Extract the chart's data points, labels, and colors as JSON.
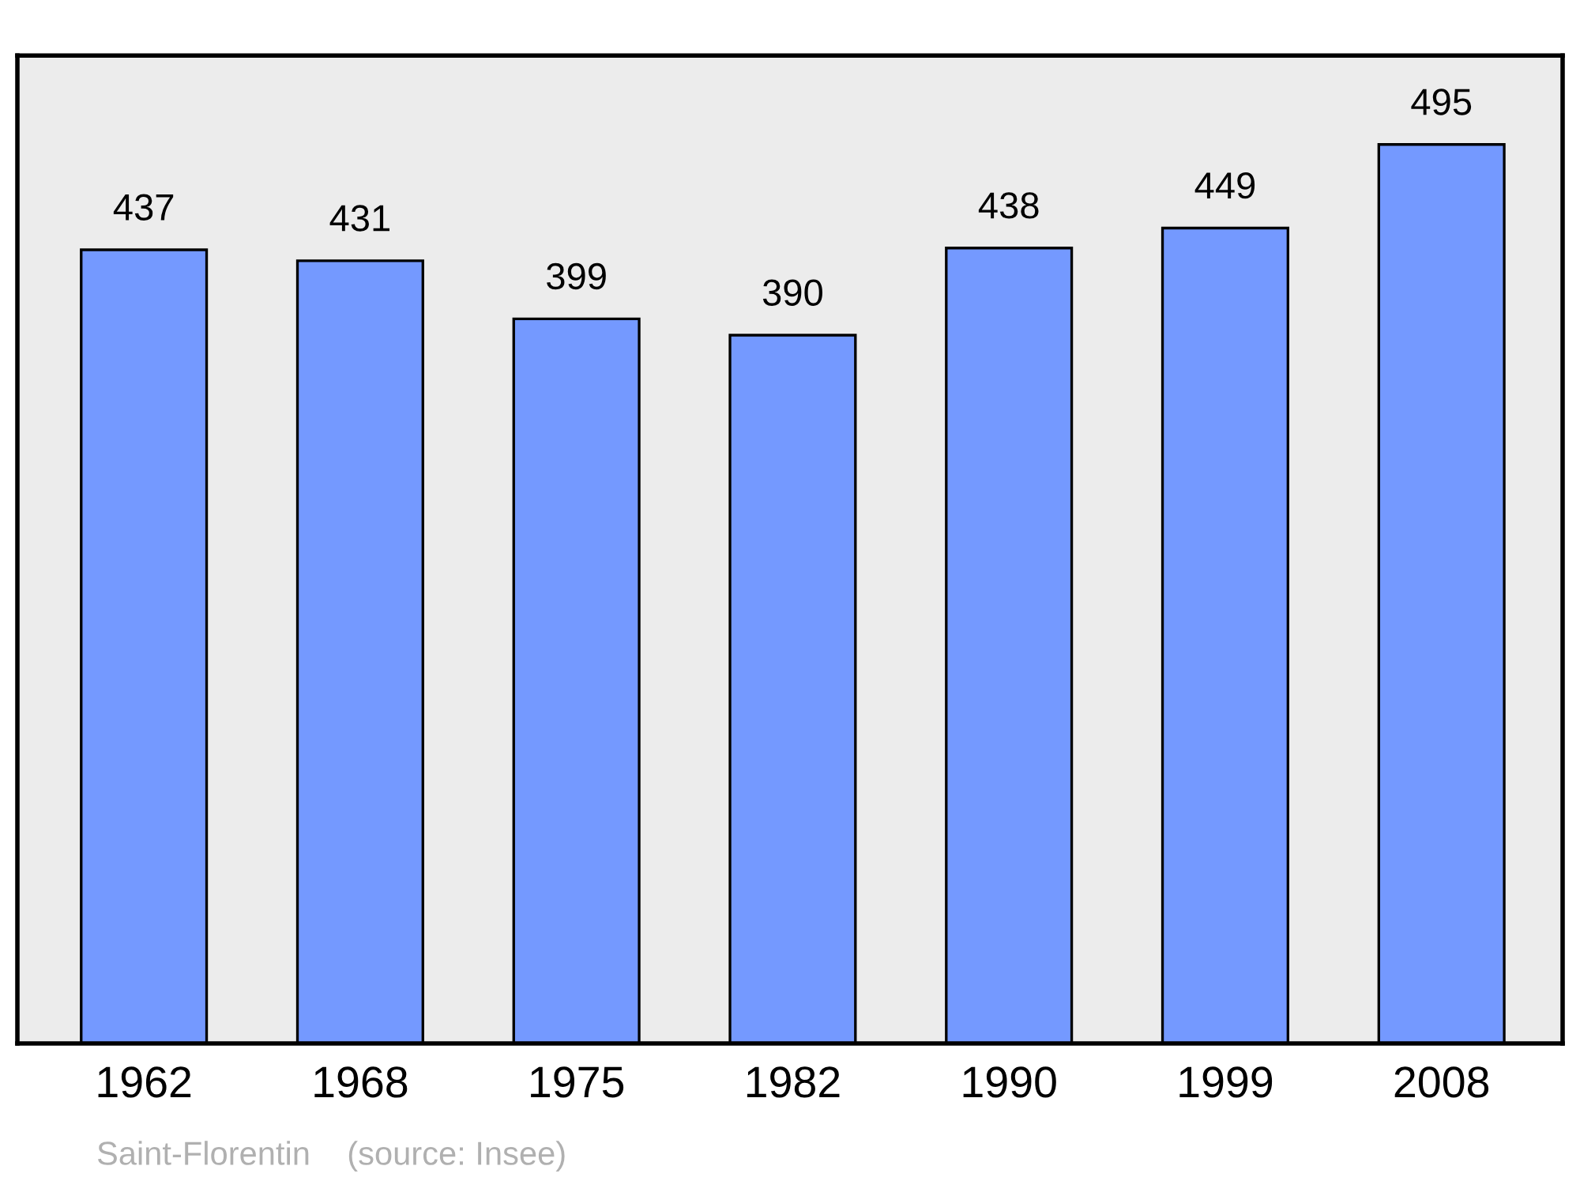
{
  "chart_data": {
    "type": "bar",
    "categories": [
      "1962",
      "1968",
      "1975",
      "1982",
      "1990",
      "1999",
      "2008"
    ],
    "values": [
      437,
      431,
      399,
      390,
      438,
      449,
      495
    ],
    "color": "#7499ff",
    "ylim": [
      0,
      544
    ],
    "data_labels": true,
    "grid": false,
    "legend": false,
    "annotations": [
      "Saint-Florentin    (source: Insee)"
    ]
  }
}
